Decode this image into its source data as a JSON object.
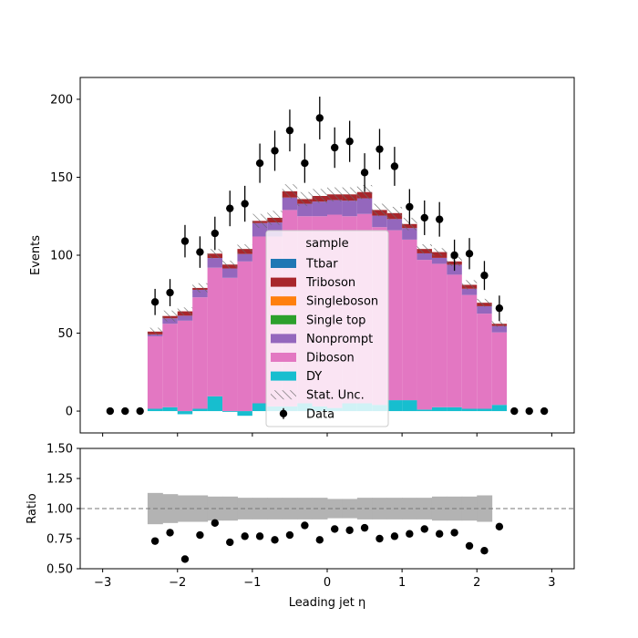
{
  "chart_data": [
    {
      "type": "bar",
      "stacked": true,
      "xlim": [
        -3.3,
        3.3
      ],
      "ylim": [
        -14,
        214
      ],
      "x_ticks": [
        -3,
        -2,
        -1,
        0,
        1,
        2,
        3
      ],
      "y_ticks": [
        0,
        50,
        100,
        150,
        200
      ],
      "ylabel": "Events",
      "bin_edges": [
        -2.4,
        -2.2,
        -2.0,
        -1.8,
        -1.6,
        -1.4,
        -1.2,
        -1.0,
        -0.8,
        -0.6,
        -0.4,
        -0.2,
        0.0,
        0.2,
        0.4,
        0.6,
        0.8,
        1.0,
        1.2,
        1.4,
        1.6,
        1.8,
        2.0,
        2.2,
        2.4
      ],
      "series": [
        {
          "name": "DY",
          "color": "#17becf",
          "values": [
            1.5,
            2.5,
            -2,
            1.5,
            9.5,
            -0.5,
            -3,
            5,
            3,
            3,
            5,
            3,
            2,
            5,
            5,
            4,
            7,
            7,
            1,
            2.5,
            2.5,
            1.5,
            1.5,
            4
          ]
        },
        {
          "name": "Diboson",
          "color": "#e377c2",
          "values": [
            46.5,
            53.5,
            58,
            71.5,
            82.5,
            85.5,
            96,
            107,
            109,
            126,
            120,
            122,
            124,
            120,
            121.5,
            114,
            109,
            103,
            96,
            92,
            85,
            73,
            61,
            46.5
          ]
        },
        {
          "name": "Nonprompt",
          "color": "#9467bd",
          "values": [
            1.2,
            3.5,
            3.2,
            4.8,
            6.2,
            6,
            4.8,
            8.6,
            9,
            8,
            8,
            9.4,
            9.4,
            10,
            10,
            7.4,
            7.2,
            7.4,
            4.2,
            3.8,
            6.4,
            4,
            4.8,
            4.1
          ]
        },
        {
          "name": "Single top",
          "color": "#2ca02c",
          "values": [
            0,
            0,
            0,
            0,
            0,
            0,
            0,
            0,
            0,
            0,
            0,
            0,
            0,
            0,
            0,
            0,
            0,
            0,
            0,
            0,
            0,
            0,
            0,
            0
          ]
        },
        {
          "name": "Singleboson",
          "color": "#ff7f0e",
          "values": [
            0,
            0,
            0,
            0,
            0,
            0,
            0,
            0,
            0,
            0,
            0,
            0,
            0,
            0,
            0,
            0,
            0,
            0,
            0,
            0,
            0,
            0,
            0,
            0
          ]
        },
        {
          "name": "Triboson",
          "color": "#a8262c",
          "values": [
            1.8,
            1.5,
            2.8,
            1.2,
            2.8,
            2.5,
            3.2,
            1.4,
            3,
            4,
            3,
            3.6,
            3.6,
            4,
            4,
            3.6,
            3.8,
            2.6,
            2.8,
            3.7,
            2.1,
            2.5,
            2.2,
            1.4
          ]
        },
        {
          "name": "Ttbar",
          "color": "#1f77b4",
          "values": [
            0,
            0,
            0,
            0,
            0,
            0,
            0,
            0,
            0,
            0,
            0,
            0,
            0,
            0,
            0,
            0,
            0,
            0,
            0,
            0,
            0,
            0,
            0,
            0
          ]
        }
      ],
      "stat_unc": {
        "name": "Stat. Unc.",
        "values": [
          2.5,
          3.5,
          2.5,
          3,
          3,
          2.5,
          3,
          4.5,
          4.5,
          4.5,
          4.5,
          4.5,
          4.5,
          4.5,
          4.5,
          4,
          4,
          4,
          3,
          2.5,
          3,
          3,
          2.5,
          2
        ]
      },
      "data": {
        "name": "Data",
        "x": [
          -2.9,
          -2.7,
          -2.5,
          -2.3,
          -2.1,
          -1.9,
          -1.7,
          -1.5,
          -1.3,
          -1.1,
          -0.9,
          -0.7,
          -0.5,
          -0.3,
          -0.1,
          0.1,
          0.3,
          0.5,
          0.7,
          0.9,
          1.1,
          1.3,
          1.5,
          1.7,
          1.9,
          2.1,
          2.3,
          2.5,
          2.7,
          2.9
        ],
        "y": [
          0,
          0,
          0,
          70,
          76,
          109,
          102,
          114,
          130,
          133,
          159,
          167,
          180,
          159,
          188,
          169,
          173,
          153,
          168,
          157,
          131,
          124,
          123,
          100,
          101,
          87,
          66,
          0,
          0,
          0
        ],
        "err": [
          0,
          0,
          0,
          8.4,
          8.7,
          10.4,
          10.1,
          10.7,
          11.4,
          11.5,
          12.6,
          12.9,
          13.4,
          12.6,
          13.7,
          13,
          13.2,
          12.4,
          13,
          12.5,
          11.4,
          11.1,
          11.1,
          10,
          10,
          9.3,
          8.1,
          0,
          0,
          0
        ]
      },
      "legend": {
        "title": "sample",
        "placement": "center"
      }
    },
    {
      "type": "scatter",
      "xlim": [
        -3.3,
        3.3
      ],
      "ylim": [
        0.5,
        1.5
      ],
      "x_ticks": [
        -3,
        -2,
        -1,
        0,
        1,
        2,
        3
      ],
      "y_ticks": [
        "0.50",
        "0.75",
        "1.00",
        "1.25",
        "1.50"
      ],
      "xlabel": "Leading jet  η",
      "ylabel": "Ratio",
      "reference_line": 1.0,
      "unc_band_edges": [
        -2.4,
        -2.2,
        -2.0,
        -1.8,
        -1.6,
        -1.4,
        -1.2,
        -1.0,
        -0.8,
        -0.6,
        -0.4,
        -0.2,
        0.0,
        0.2,
        0.4,
        0.6,
        0.8,
        1.0,
        1.2,
        1.4,
        1.6,
        1.8,
        2.0,
        2.2
      ],
      "unc_band_half_width": [
        0.13,
        0.12,
        0.11,
        0.11,
        0.1,
        0.1,
        0.09,
        0.09,
        0.09,
        0.09,
        0.09,
        0.09,
        0.08,
        0.08,
        0.09,
        0.09,
        0.09,
        0.09,
        0.09,
        0.1,
        0.1,
        0.1,
        0.11
      ],
      "x": [
        -2.3,
        -2.1,
        -1.9,
        -1.7,
        -1.5,
        -1.3,
        -1.1,
        -0.9,
        -0.7,
        -0.5,
        -0.3,
        -0.1,
        0.1,
        0.3,
        0.5,
        0.7,
        0.9,
        1.1,
        1.3,
        1.5,
        1.7,
        1.9,
        2.1,
        2.3
      ],
      "y": [
        0.73,
        0.8,
        0.58,
        0.78,
        0.88,
        0.72,
        0.77,
        0.77,
        0.74,
        0.78,
        0.86,
        0.74,
        0.83,
        0.82,
        0.84,
        0.75,
        0.77,
        0.79,
        0.83,
        0.79,
        0.8,
        0.69,
        0.65,
        0.85
      ],
      "err": [
        0,
        0.03,
        0,
        0,
        0.03,
        0,
        0,
        0,
        0,
        0,
        0,
        0,
        0,
        0,
        0,
        0,
        0,
        0,
        0,
        0,
        0,
        0,
        0,
        0.03
      ]
    }
  ]
}
